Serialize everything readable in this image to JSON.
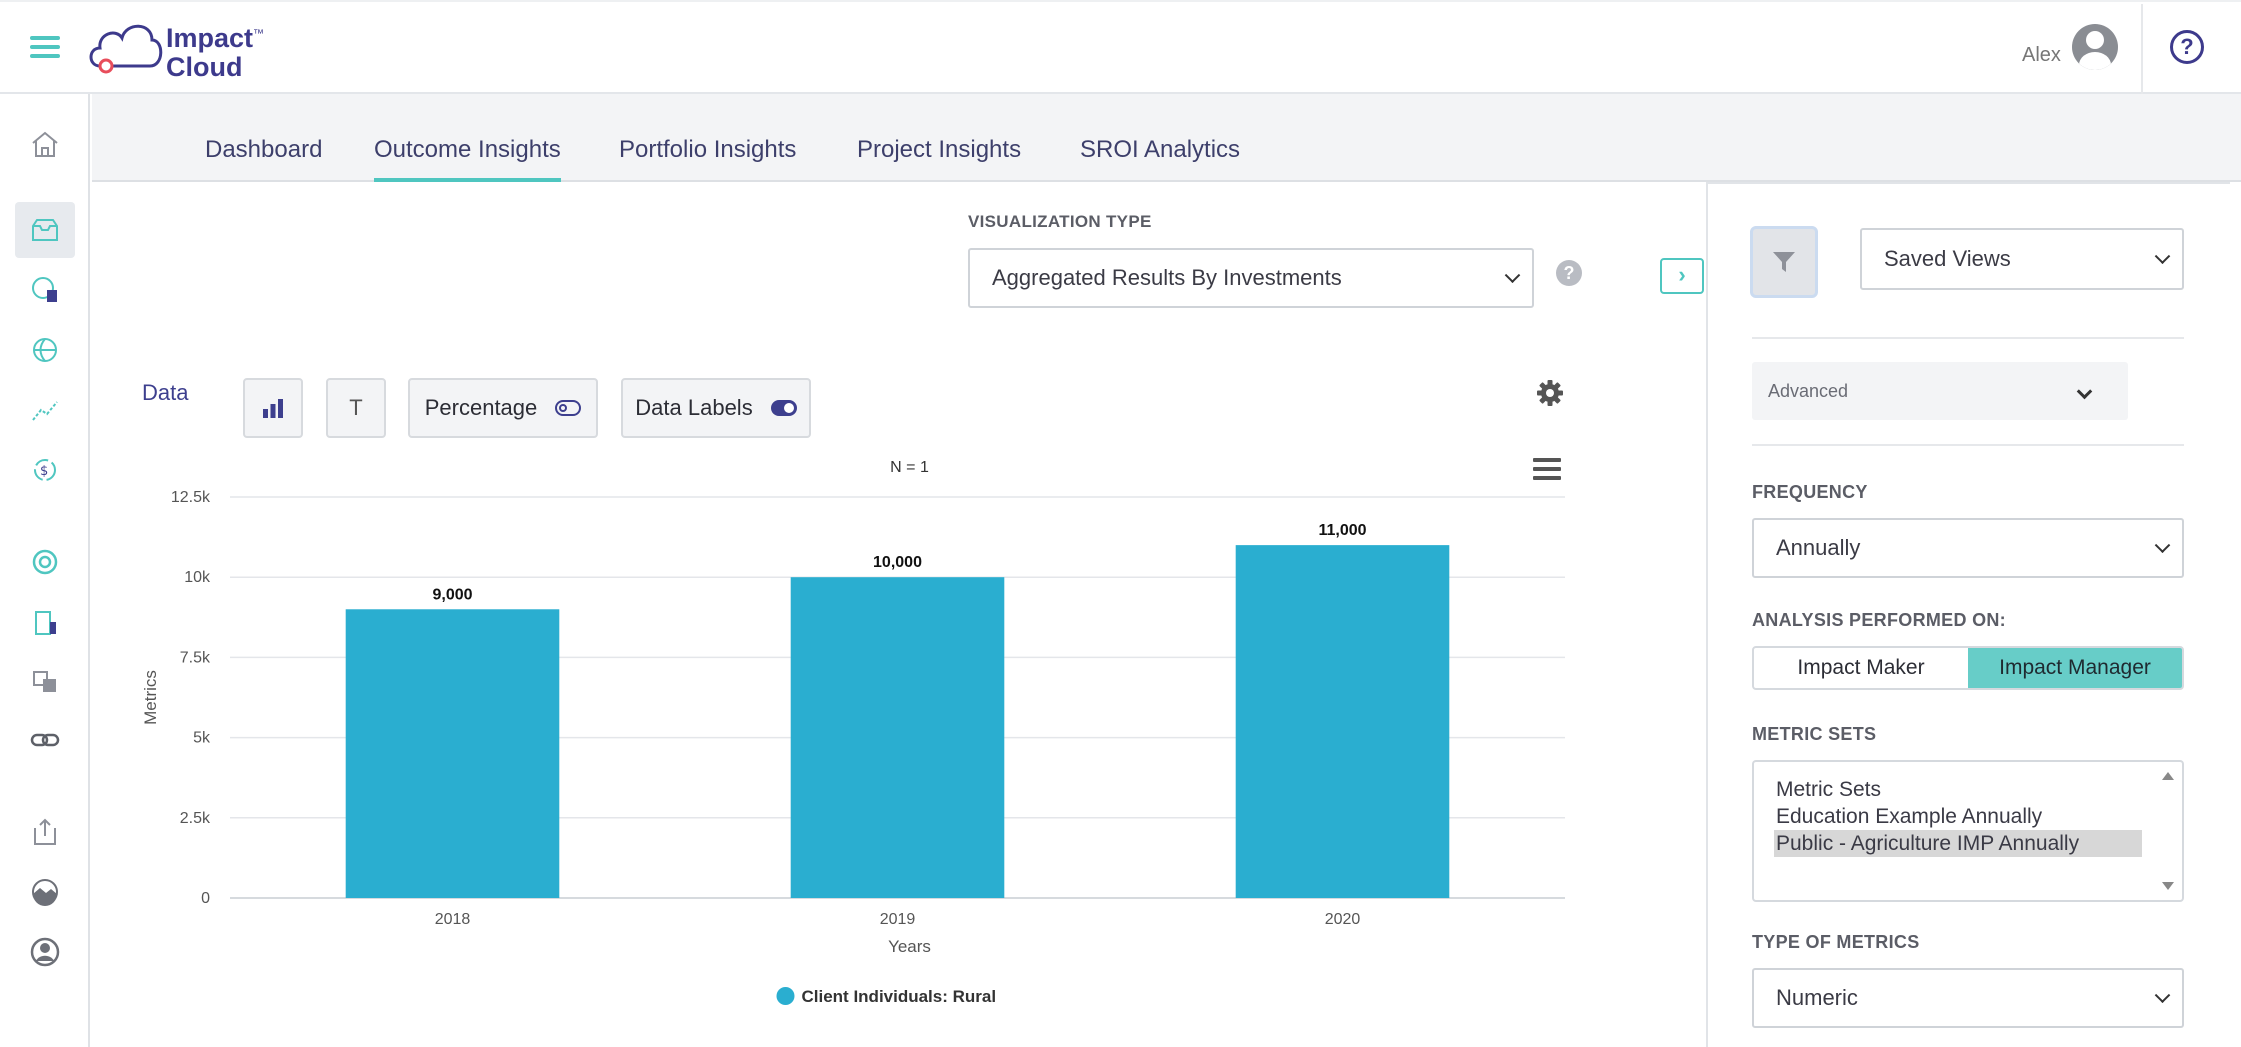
{
  "header": {
    "logo_name": "Impact",
    "logo_name2": "Cloud",
    "logo_tm": "™",
    "user_name": "Alex",
    "help_label": "?"
  },
  "sidenav": {
    "icons": [
      "home-icon",
      "inbox-icon",
      "report-globe-icon",
      "globe-icon",
      "trend-chart-icon",
      "currency-cycle-icon",
      "lifebuoy-icon",
      "building-icon",
      "translate-icon",
      "link-icon",
      "export-icon",
      "landscape-icon",
      "user-circle-icon"
    ],
    "active": "inbox-icon"
  },
  "tabs": [
    {
      "label": "Dashboard",
      "active": false
    },
    {
      "label": "Outcome Insights",
      "active": true
    },
    {
      "label": "Portfolio Insights",
      "active": false
    },
    {
      "label": "Project Insights",
      "active": false
    },
    {
      "label": "SROI Analytics",
      "active": false
    }
  ],
  "visualization": {
    "label": "VISUALIZATION TYPE",
    "selected": "Aggregated Results By Investments",
    "help": "?",
    "expand": "›"
  },
  "toolbar": {
    "data_label": "Data",
    "text_btn": "T",
    "percentage_label": "Percentage",
    "percentage_on": false,
    "data_labels_label": "Data Labels",
    "data_labels_on": true
  },
  "chart_data": {
    "type": "bar",
    "title": "N = 1",
    "categories": [
      "2018",
      "2019",
      "2020"
    ],
    "series": [
      {
        "name": "Client Individuals: Rural",
        "values": [
          9000,
          10000,
          11000
        ]
      }
    ],
    "data_labels": [
      "9,000",
      "10,000",
      "11,000"
    ],
    "yticks": [
      0,
      2500,
      5000,
      7500,
      10000,
      12500
    ],
    "ytick_labels": [
      "0",
      "2.5k",
      "5k",
      "7.5k",
      "10k",
      "12.5k"
    ],
    "ylim": [
      0,
      12500
    ],
    "xlabel": "Years",
    "ylabel": "Metrics",
    "grid": true,
    "legend": "bottom-center",
    "color": "#2aaed0"
  },
  "panel": {
    "saved_views": "Saved Views",
    "advanced": "Advanced",
    "frequency_label": "FREQUENCY",
    "frequency_value": "Annually",
    "analysis_label": "ANALYSIS PERFORMED ON:",
    "analysis_options": [
      "Impact Maker",
      "Impact Manager"
    ],
    "analysis_selected": "Impact Manager",
    "metric_sets_label": "METRIC SETS",
    "metric_sets": [
      "Metric Sets",
      "Education Example Annually",
      "Public - Agriculture IMP Annually"
    ],
    "metric_sets_selected": "Public - Agriculture IMP Annually",
    "type_label": "TYPE OF METRICS",
    "type_value": "Numeric"
  }
}
